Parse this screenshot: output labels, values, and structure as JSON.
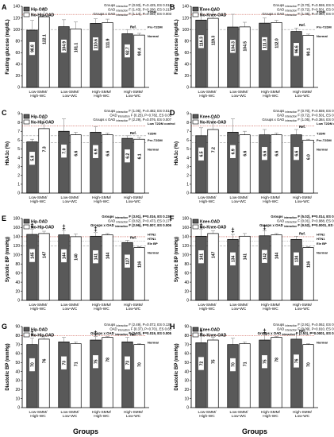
{
  "figure": {
    "xtitle": "Groups"
  },
  "chart_data": [
    {
      "panel": "A",
      "type": "bar",
      "ylabel": "Fasting glucose (mg/dL)",
      "ylim": [
        0,
        140
      ],
      "yticks": [
        0,
        20,
        40,
        60,
        80,
        100,
        120,
        140
      ],
      "categories": [
        "Low-SMM/\nHigh-WC",
        "Low-SMM/\nLow-WC",
        "High-SMM/\nHigh-WC",
        "High-SMM/\nLow-WC"
      ],
      "series": [
        {
          "name": "Hip-OAD",
          "values": [
            98.8,
            104.9,
            110.6,
            92.7
          ],
          "errors": [
            17,
            12,
            8,
            7
          ],
          "labels": [
            "98.8",
            "104.9",
            "110.6",
            "92.7"
          ]
        },
        {
          "name": "No-Hip-OAD",
          "values": [
            122.1,
            101.1,
            111.9,
            90.4
          ],
          "errors": [
            15,
            12,
            6,
            3
          ],
          "labels": [
            "122.1",
            "101.1",
            "111.9",
            "90.4"
          ]
        }
      ],
      "reflines": [
        {
          "y": 126,
          "label": "T2DM",
          "style": "dotted"
        },
        {
          "y": 100,
          "label": "Pre-T2DM",
          "style": "dashed"
        }
      ],
      "ref_marker": {
        "text": "Ref.",
        "group": 3
      },
      "normal_label": "Normal",
      "stats": [
        {
          "label": "Groups",
          "sub": "interaction",
          "text": "F (0.93), P=0.425, ES 0.016",
          "bold": false
        },
        {
          "label": "OAD",
          "sub": "interaction",
          "text": "F (1.43), P=0.280, ES 0.212",
          "bold": false
        },
        {
          "label": "Groups x OAD",
          "sub": "interaction",
          "text": "F (1.14), P=0.332, ES 0.003",
          "bold": false
        }
      ],
      "sig": []
    },
    {
      "panel": "B",
      "type": "bar",
      "ylabel": "Fasting glucose (mg/dL)",
      "ylim": [
        0,
        140
      ],
      "yticks": [
        0,
        20,
        40,
        60,
        80,
        100,
        120,
        140
      ],
      "categories": [
        "Low-SMM/\nHigh-WC",
        "Low-SMM/\nLow-WC",
        "High-SMM/\nHigh-WC",
        "High-SMM/\nLow-WC"
      ],
      "series": [
        {
          "name": "Knee-OAD",
          "values": [
            116.3,
            104.3,
            111.0,
            96.6
          ],
          "errors": [
            22,
            22,
            9,
            6
          ],
          "labels": [
            "116.3",
            "104.3",
            "111.0",
            "96.6"
          ]
        },
        {
          "name": "No-Knee-OAD",
          "values": [
            119.3,
            104.5,
            112.0,
            90.1
          ],
          "errors": [
            13,
            8,
            4,
            2
          ],
          "labels": [
            "119.3",
            "104.5",
            "112.0",
            "90.1"
          ]
        }
      ],
      "reflines": [
        {
          "y": 126,
          "label": "T2DM",
          "style": "dotted"
        },
        {
          "y": 100,
          "label": "Pre-T2DM",
          "style": "dashed"
        }
      ],
      "ref_marker": {
        "text": "Ref.",
        "group": 3
      },
      "normal_label": "Normal",
      "stats": [
        {
          "label": "Groups",
          "sub": "interaction",
          "text": "F (0.70), P=0.559, ES 0.065",
          "bold": false
        },
        {
          "label": "OAD",
          "sub": "interaction",
          "text": "F (0.72), P=0.501, ES 0.100",
          "bold": false
        },
        {
          "label": "Groups x OAD",
          "sub": "interaction",
          "text": "F (1.05), P=0.384, ES 0.005",
          "bold": false
        }
      ],
      "sig": []
    },
    {
      "panel": "C",
      "type": "bar",
      "ylabel": "HbA1c (%)",
      "ylim": [
        0,
        9
      ],
      "yticks": [
        0,
        1,
        2,
        3,
        4,
        5,
        6,
        7,
        8,
        9
      ],
      "categories": [
        "Low-SMM/\nHigh-WC",
        "Low-SMM/\nLow-WC",
        "High-SMM/\nHigh-WC",
        "High-SMM/\nLow-WC"
      ],
      "series": [
        {
          "name": "Hip-OAD",
          "values": [
            5.8,
            7.0,
            6.9,
            6.2
          ],
          "errors": [
            0.3,
            1.4,
            0.6,
            0.3
          ],
          "labels": [
            "5.8",
            "7.0",
            "6.9",
            "6.2"
          ]
        },
        {
          "name": "No-Hip-OAD",
          "values": [
            7.3,
            6.6,
            6.6,
            6.1
          ],
          "errors": [
            1.1,
            0.3,
            0.2,
            0.2
          ],
          "labels": [
            "7.3",
            "6.6",
            "6.6",
            "6.1"
          ]
        }
      ],
      "reflines": [
        {
          "y": 7.6,
          "label": "Low T2DM control",
          "style": "dotted"
        },
        {
          "y": 6.5,
          "label": "T2DM",
          "style": "dashed"
        },
        {
          "y": 5.7,
          "label": "Pre-T2DM",
          "style": "dashed"
        }
      ],
      "ref_marker": {
        "text": "Ref.",
        "group": 3
      },
      "normal_label": "Normal",
      "stats": [
        {
          "label": "Groups",
          "sub": "interaction",
          "text": "F (1.05), P=0.482, ES 0.514",
          "bold": false
        },
        {
          "label": "OAD",
          "sub": "interaction",
          "text": "F (0.25), P=0.782, ES 0.05",
          "bold": false
        },
        {
          "label": "Groups x OAD",
          "sub": "interaction",
          "text": "F (2.29), P=0.076, ES 0.007",
          "bold": false
        }
      ],
      "sig": []
    },
    {
      "panel": "D",
      "type": "bar",
      "ylabel": "HbA1c (%)",
      "ylim": [
        0,
        9
      ],
      "yticks": [
        0,
        1,
        2,
        3,
        4,
        5,
        6,
        7,
        8,
        9
      ],
      "categories": [
        "Low-SMM/\nHigh-WC",
        "Low-SMM/\nLow-WC",
        "High-SMM/\nHigh-WC",
        "High-SMM/\nLow-WC"
      ],
      "series": [
        {
          "name": "Knee-OAD",
          "values": [
            6.5,
            6.9,
            6.6,
            6.6
          ],
          "errors": [
            0.9,
            1.5,
            0.6,
            0.6
          ],
          "labels": [
            "6.5",
            "6.9",
            "6.6",
            "6.6"
          ]
        },
        {
          "name": "No-Knee-OAD",
          "values": [
            7.2,
            6.6,
            6.6,
            6.0
          ],
          "errors": [
            1.2,
            0.4,
            0.2,
            0.1
          ],
          "labels": [
            "7.2",
            "6.6",
            "6.6",
            "6.0"
          ]
        }
      ],
      "reflines": [
        {
          "y": 7.6,
          "label": "Low T2DM control",
          "style": "dotted"
        },
        {
          "y": 6.5,
          "label": "T2DM",
          "style": "dashed"
        },
        {
          "y": 5.7,
          "label": "Pre-T2DM",
          "style": "dashed"
        }
      ],
      "ref_marker": {
        "text": "Ref.",
        "group": 3
      },
      "normal_label": "Normal",
      "stats": [
        {
          "label": "Groups",
          "sub": "interaction",
          "text": "F (0.70), P=0.559, ES 0.065",
          "bold": false
        },
        {
          "label": "OAD",
          "sub": "interaction",
          "text": "F (0.72), P=0.501, ES 0.100",
          "bold": false
        },
        {
          "label": "Groups x OAD",
          "sub": "interaction",
          "text": "F (1.05), P=0.384, ES 0.005",
          "bold": false
        }
      ],
      "sig": []
    },
    {
      "panel": "E",
      "type": "bar",
      "ylabel": "Systolic BP (mmHg)",
      "ylim": [
        0,
        180
      ],
      "yticks": [
        0,
        20,
        40,
        60,
        80,
        100,
        120,
        140,
        160,
        180
      ],
      "categories": [
        "Low-SMM/\nHigh-WC",
        "Low-SMM/\nLow-WC",
        "High-SMM/\nHigh-WC",
        "High-SMM/\nLow-WC"
      ],
      "series": [
        {
          "name": "Hip-OAD",
          "values": [
            145,
            144,
            141,
            127
          ],
          "errors": [
            12,
            10,
            8,
            5
          ],
          "labels": [
            "145",
            "144",
            "141",
            "127"
          ]
        },
        {
          "name": "No-Hip-OAD",
          "values": [
            147,
            140,
            144,
            116
          ],
          "errors": [
            5,
            6,
            3,
            2
          ],
          "labels": [
            "147",
            "140",
            "144",
            "116"
          ]
        }
      ],
      "reflines": [
        {
          "y": 140,
          "label": "HTN2",
          "style": "dotted"
        },
        {
          "y": 130,
          "label": "HTN1",
          "style": "dotted"
        },
        {
          "y": 120,
          "label": "Ele BP",
          "style": "dashed"
        }
      ],
      "ref_marker": {
        "text": "Ref.",
        "group": 3
      },
      "normal_label": "Normal",
      "stats": [
        {
          "label": "Groups",
          "sub": "interaction",
          "text": "F (3.91), P=0.016, ES 0.236",
          "bold": true
        },
        {
          "label": "OAD",
          "sub": "interaction",
          "text": "F (0.82), P=0.473, ES 0.177",
          "bold": false
        },
        {
          "label": "Groups x OAD",
          "sub": "interaction",
          "text": "F (2.96), P=0.007, ES 0.006",
          "bold": true
        }
      ],
      "sig": [
        0,
        1,
        2
      ]
    },
    {
      "panel": "F",
      "type": "bar",
      "ylabel": "Systolic BP (mmHg)",
      "ylim": [
        0,
        180
      ],
      "yticks": [
        0,
        20,
        40,
        60,
        80,
        100,
        120,
        140,
        160,
        180
      ],
      "categories": [
        "Low-SMM/\nHigh-WC",
        "Low-SMM/\nLow-WC",
        "High-SMM/\nHigh-WC",
        "High-SMM/\nLow-WC"
      ],
      "series": [
        {
          "name": "Knee-OAD",
          "values": [
            141,
            134,
            142,
            134
          ],
          "errors": [
            15,
            11,
            11,
            7
          ],
          "labels": [
            "141",
            "134",
            "142",
            "134"
          ]
        },
        {
          "name": "No-Knee-OAD",
          "values": [
            147,
            141,
            144,
            116
          ],
          "errors": [
            6,
            6,
            3,
            2
          ],
          "labels": [
            "147",
            "141",
            "144",
            "116"
          ]
        }
      ],
      "reflines": [
        {
          "y": 140,
          "label": "HTN2",
          "style": "dotted"
        },
        {
          "y": 130,
          "label": "HTN1",
          "style": "dotted"
        },
        {
          "y": 120,
          "label": "Ele BP",
          "style": "dashed"
        }
      ],
      "ref_marker": {
        "text": "Ref.",
        "group": 3
      },
      "normal_label": "Normal",
      "stats": [
        {
          "label": "Groups",
          "sub": "interaction",
          "text": "F (5.02), P=0.014, ES 0.509",
          "bold": true
        },
        {
          "label": "OAD",
          "sub": "interaction",
          "text": "F (0.01), P=0.988, ES 0.004",
          "bold": false
        },
        {
          "label": "Groups x OAD",
          "sub": "interaction",
          "text": "F (9.52), P=0.0001, ES 0.52",
          "bold": true
        }
      ],
      "sig": [
        0,
        1,
        2
      ]
    },
    {
      "panel": "G",
      "type": "bar",
      "ylabel": "Diastolic BP (mmHg)",
      "ylim": [
        0,
        90
      ],
      "yticks": [
        0,
        10,
        20,
        30,
        40,
        50,
        60,
        70,
        80,
        90
      ],
      "categories": [
        "Low-SMM/\nHigh-WC",
        "Low-SMM/\nLow-WC",
        "High-SMM/\nHigh-WC",
        "High-SMM/\nLow-WC"
      ],
      "series": [
        {
          "name": "Hip-OAD",
          "values": [
            70,
            73,
            75,
            73
          ],
          "errors": [
            7,
            5,
            4,
            5
          ],
          "labels": [
            "70",
            "73",
            "75",
            "73"
          ]
        },
        {
          "name": "No-Hip-OAD",
          "values": [
            76,
            71,
            78,
            70
          ],
          "errors": [
            3,
            2,
            1,
            1
          ],
          "labels": [
            "76",
            "71",
            "78",
            "70"
          ]
        }
      ],
      "reflines": [
        {
          "y": 80,
          "label": "",
          "style": "dotted"
        }
      ],
      "ref_marker": {
        "text": "Ref.",
        "group": 3
      },
      "normal_label": "Normal",
      "stats": [
        {
          "label": "Groups",
          "sub": "interaction",
          "text": "F (2.49), P=0.072, ES 0.139",
          "bold": false
        },
        {
          "label": "OAD",
          "sub": "interaction",
          "text": "F (0.37), P=0.701, ES 0.65",
          "bold": false
        },
        {
          "label": "Groups x OAD",
          "sub": "interaction",
          "text": "F (2.53), P=0.019, ES 0.005",
          "bold": true
        }
      ],
      "sig": [
        0,
        2
      ]
    },
    {
      "panel": "H",
      "type": "bar",
      "ylabel": "Diastolic BP (mmHg)",
      "ylim": [
        0,
        90
      ],
      "yticks": [
        0,
        10,
        20,
        30,
        40,
        50,
        60,
        70,
        80,
        90
      ],
      "categories": [
        "Low-SMM/\nHigh-WC",
        "Low-SMM/\nLow-WC",
        "High-SMM/\nHigh-WC",
        "High-SMM/\nLow-WC"
      ],
      "series": [
        {
          "name": "Knee-OAD",
          "values": [
            72,
            70,
            75,
            76
          ],
          "errors": [
            8,
            7,
            6,
            6
          ],
          "labels": [
            "72",
            "70",
            "75",
            "76"
          ]
        },
        {
          "name": "No-Knee-OAD",
          "values": [
            75,
            71,
            78,
            70
          ],
          "errors": [
            3,
            2,
            1,
            1
          ],
          "labels": [
            "75",
            "71",
            "78",
            "70"
          ]
        }
      ],
      "reflines": [
        {
          "y": 80,
          "label": "",
          "style": "dotted"
        }
      ],
      "ref_marker": {
        "text": "Ref.",
        "group": 3
      },
      "normal_label": "Normal",
      "stats": [
        {
          "label": "Groups",
          "sub": "interaction",
          "text": "F (2.91), P=0.062, ES 0.325",
          "bold": false
        },
        {
          "label": "OAD",
          "sub": "interaction",
          "text": "F (0.09), P=0.910, ES 0.027",
          "bold": false
        },
        {
          "label": "Groups x OAD",
          "sub": "interaction",
          "text": "F (2.53), P=0.0001, ES 0.010",
          "bold": true
        }
      ],
      "sig": [
        0,
        2
      ]
    }
  ],
  "colors": {
    "oad": "#595959",
    "no_oad": "#ffffff",
    "outline": "#000000",
    "error": "#8c8c8c",
    "refline": "#c0392b",
    "grid": "#9e9e9e"
  },
  "sig_symbol": "‡"
}
